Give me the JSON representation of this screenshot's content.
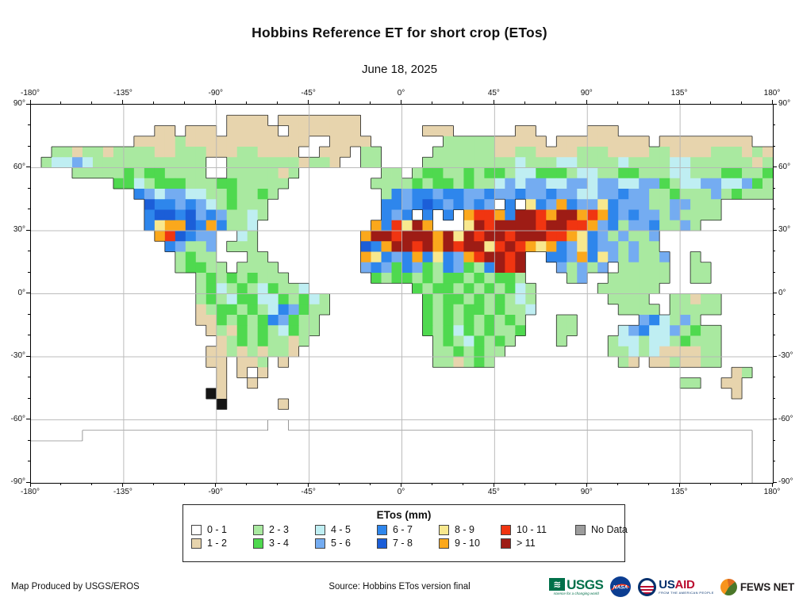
{
  "header": {
    "title": "Hobbins Reference ET for short crop (ETos)",
    "subtitle": "June 18, 2025"
  },
  "axes": {
    "lon_labels": [
      "-180°",
      "-135°",
      "-90°",
      "-45°",
      "0°",
      "45°",
      "90°",
      "135°",
      "180°"
    ],
    "lat_labels": [
      "90°",
      "60°",
      "30°",
      "0°",
      "-30°",
      "-60°",
      "-90°"
    ],
    "lon_major_step": 45,
    "lon_minor_step": 15,
    "lat_major_step": 30,
    "lat_minor_step": 10
  },
  "legend": {
    "title": "ETos (mm)",
    "columns": [
      [
        {
          "label": "0 - 1",
          "color": "#ffffff"
        },
        {
          "label": "1 - 2",
          "color": "#e7d4ad"
        }
      ],
      [
        {
          "label": "2 - 3",
          "color": "#a9e9a0"
        },
        {
          "label": "3 - 4",
          "color": "#4fd94f"
        }
      ],
      [
        {
          "label": "4 - 5",
          "color": "#bfeef2"
        },
        {
          "label": "5 - 6",
          "color": "#74acf1"
        }
      ],
      [
        {
          "label": "6 - 7",
          "color": "#2e86ec"
        },
        {
          "label": "7 - 8",
          "color": "#1b5ed8"
        }
      ],
      [
        {
          "label": "8 - 9",
          "color": "#f8e88e"
        },
        {
          "label": "9 - 10",
          "color": "#fba81c"
        }
      ],
      [
        {
          "label": "10 - 11",
          "color": "#f03511"
        },
        {
          "label": "> 11",
          "color": "#9e1c15"
        }
      ],
      [
        {
          "label": "No Data",
          "color": "#9c9c9c"
        }
      ]
    ]
  },
  "footer": {
    "produced_by": "Map Produced by USGS/EROS",
    "source": "Source: Hobbins ETos version final",
    "logos": {
      "usgs": {
        "name": "USGS",
        "tagline": "science for a changing world",
        "wave": "≋",
        "color": "#00704a"
      },
      "nasa": {
        "name": "NASA",
        "color": "#0b3d91",
        "accent": "#fc3d21"
      },
      "usaid": {
        "us": "US",
        "aid": "AID",
        "tagline": "FROM THE AMERICAN PEOPLE"
      },
      "fewsnet": {
        "name": "FEWS NET"
      }
    }
  },
  "chart_data": {
    "type": "heatmap",
    "title": "Hobbins Reference ET for short crop (ETos)",
    "date": "June 18, 2025",
    "units": "mm",
    "projection": "equirectangular",
    "lon_range": [
      -180,
      180
    ],
    "lat_range": [
      -90,
      90
    ],
    "classes": [
      "0 - 1",
      "1 - 2",
      "2 - 3",
      "3 - 4",
      "4 - 5",
      "5 - 6",
      "6 - 7",
      "7 - 8",
      "8 - 9",
      "9 - 10",
      "10 - 11",
      "> 11",
      "No Data"
    ],
    "palette": {
      ".": "#ffffff",
      "w": "#ffffff",
      "t": "#e7d4ad",
      "g": "#a9e9a0",
      "G": "#4fd94f",
      "c": "#bfeef2",
      "b": "#74acf1",
      "B": "#2e86ec",
      "D": "#1b5ed8",
      "y": "#f8e88e",
      "o": "#fba81c",
      "r": "#f03511",
      "R": "#9e1c15",
      "N": "#9c9c9c",
      "k": "#151515"
    },
    "code_meaning": {
      ".": "ocean / 0 - 1",
      "t": "1 - 2",
      "g": "2 - 3",
      "G": "3 - 4",
      "c": "4 - 5",
      "b": "5 - 6",
      "B": "6 - 7",
      "D": "7 - 8",
      "y": "8 - 9",
      "o": "9 - 10",
      "r": "10 - 11",
      "R": "> 11",
      "N": "No Data",
      "w": "ice sheet (outline only)",
      "k": "glacier band"
    },
    "cols": 72,
    "rows": 36,
    "cell_deg": 5,
    "grid_rows_lat_90N_to_90S": [
      "........................................................................",
      "...................tttt.tttttttt........................................",
      "............tt.ttt.ttttt.ttttttt......ttt......tt.....ttt...............",
      "..........ttttgtttttttttttt..tttt.......gggggttttt.ttttttttt.ttttttttt...",
      "..ggtggtggggttgggtttggtttt..ttt.gg.....ggggggttggttttgggttttggttttgggtgt",
      ".gccbcggggggggggg..gggggggtggt..gg....gggggggggcgggccggggcggggccggggggtg",
      "....gggggGgGGgggg..gggggtg........gg.gGGggGgGGgccGGGgccggGGgggccgggGGggG",
      "........GGcgGGGgggGGggggg........ggggGgGGgGggcbcbbccbbcbbccbbGgccbbccbGg",
      "..........BbcbbccggGggGg..........gBbBBbBBbbBbbBbbBbbccbbBbbggGgggbgGggg",
      "...........DBBbBbcgGggg...........BBbBDBbBbBb.B.yBboBbbyBbbbggbbggg.....",
      "...........BDDBDbBbggcg...........BbB.B.B.orroBRRroRRoroBbBbbgbgggg.....",
      "...........ByooDBoBggc...........oBryRo...yRrRRRRrRRrrobBgbbBggbg.......",
      "............orDBbb..cg..........oRRrRRRoRyRrRRrRRRrroyBbgbggb...........",
      ".............Bbggb.ggg..........DBoRRrRoRrRRyrRroyoBbyBbbgbgg...........",
      "..............gGgg...gg.........oyBbBoByBborRRrR..BBboBybgbggb..g.......",
      "..............gGGgg.gggg........bBbGBbGgBbGgBRrR...bgbgb.ggggg..gg......",
      "................gGgGgGggg........GgGGgGgGGgGgGGg....gb..gggggg..gg......",
      "................gGcgGgcGggc..........GgGGgGgGgGcg......gggggg...........",
      "................gGgcGGccGgGcg.........GgGGgGgGgcg.......gggg..ggtgg.....",
      "................tgGGgGgcBbGgg.........GgGgGGgGggc........gggg.ggggg.....",
      "................ttGgGgGBbGgg..........GgGgGgGgGg...gg......bBcgbg.......",
      ".................tgtGgGgcGgg..........GgGcGgGggG...gg....cbBccbgGgg.....",
      "..................tgGgGggtg............gGgcGgGg....g....gccgccgGggg.....",
      ".................ttgtgtggt.............ggGgGgg..........ggcgcttttgg.....",
      ".................tt.ttg.t..............ggtgGg............gt.ttgttgg.....",
      "..................t.t.t.............................................tg.",
      "..................t..t.........................................gg..tt..",
      ".................kt.................................................t...",
      "..................k.....t...............................................",
      "........................................................................",
      ".......................ww...............................................",
      ".....wwwwwwwwwwwwwwwwwwwwwwwwwwwwwwwwwwwwwwwwwwwwwwwwwwwwwwwwwwwwwwwww.",
      "wwwwwwwwwwwwwwwwwwwwwwwwwwwwwwwwwwwwwwwwwwwwwwwwwwwwwwwwwwwwwwwwwwwwww",
      "wwwwwwwwwwwwwwwwwwwwwwwwwwwwwwwwwwwwwwwwwwwwwwwwwwwwwwwwwwwwwwwwwwwwww",
      "wwwwwwwwwwwwwwwwwwwwwwwwwwwwwwwwwwwwwwwwwwwwwwwwwwwwwwwwwwwwwwwwwwwwww",
      "wwwwwwwwwwwwwwwwwwwwwwwwwwwwwwwwwwwwwwwwwwwwwwwwwwwwwwwwwwwwwwwwwwwwww"
    ],
    "gridlines": {
      "lon": [
        -135,
        -90,
        -45,
        0,
        45,
        90,
        135
      ],
      "lat": [
        60,
        30,
        0,
        -30,
        -60
      ],
      "color": "#b5b5b5"
    },
    "coastline_color": "#222222",
    "ice_outline_color": "#555555"
  }
}
